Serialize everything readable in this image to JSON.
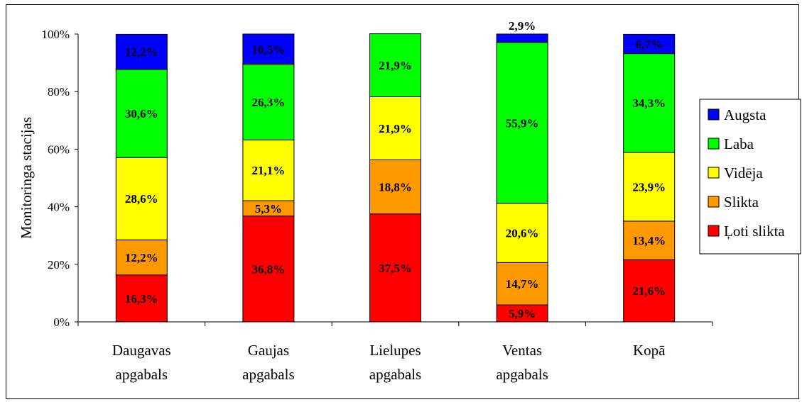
{
  "chart_data": {
    "type": "bar",
    "stacked": true,
    "percent": true,
    "ylabel": "Monitoringa stacijas",
    "ylim": [
      0,
      100
    ],
    "yticks": [
      "0%",
      "20%",
      "40%",
      "60%",
      "80%",
      "100%"
    ],
    "categories": [
      [
        "Daugavas",
        "apgabals"
      ],
      [
        "Gaujas",
        "apgabals"
      ],
      [
        "Lielupes",
        "apgabals"
      ],
      [
        "Ventas",
        "apgabals"
      ],
      [
        "Kopā"
      ]
    ],
    "series": [
      {
        "name": "Ļoti slikta",
        "color": "#ff0000",
        "values": [
          16.3,
          36.8,
          37.5,
          5.9,
          21.6
        ],
        "labels": [
          "16,3%",
          "36,8%",
          "37,5%",
          "5,9%",
          "21,6%"
        ]
      },
      {
        "name": "Slikta",
        "color": "#ff9900",
        "values": [
          12.2,
          5.3,
          18.8,
          14.7,
          13.4
        ],
        "labels": [
          "12,2%",
          "5,3%",
          "18,8%",
          "14,7%",
          "13,4%"
        ]
      },
      {
        "name": "Vidēja",
        "color": "#ffff00",
        "values": [
          28.6,
          21.1,
          21.9,
          20.6,
          23.9
        ],
        "labels": [
          "28,6%",
          "21,1%",
          "21,9%",
          "20,6%",
          "23,9%"
        ]
      },
      {
        "name": "Laba",
        "color": "#00ff00",
        "values": [
          30.6,
          26.3,
          21.9,
          55.9,
          34.3
        ],
        "labels": [
          "30,6%",
          "26,3%",
          "21,9%",
          "55,9%",
          "34,3%"
        ]
      },
      {
        "name": "Augsta",
        "color": "#0000ff",
        "values": [
          12.2,
          10.5,
          0,
          2.9,
          6.7
        ],
        "labels": [
          "12,2%",
          "10,5%",
          "",
          "2,9%",
          "6,7%"
        ]
      }
    ],
    "legend": {
      "placement": "right",
      "order": [
        "Augsta",
        "Laba",
        "Vidēja",
        "Slikta",
        "Ļoti slikta"
      ]
    },
    "grid": false
  }
}
